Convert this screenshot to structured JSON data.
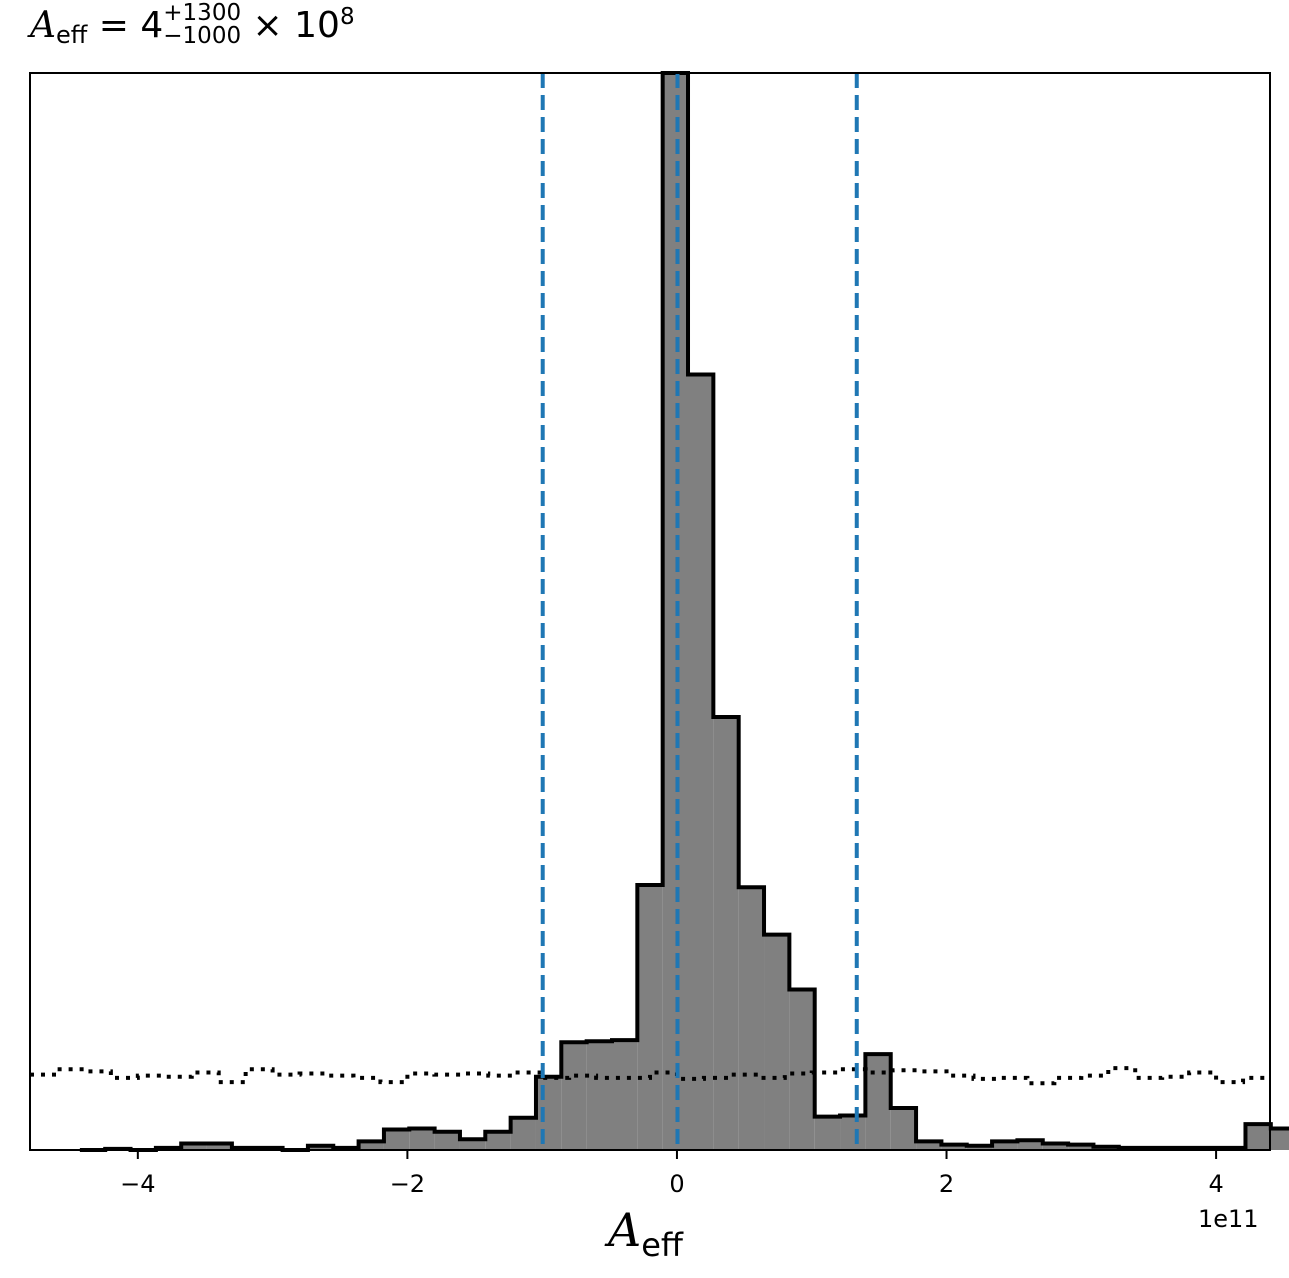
{
  "title": {
    "symbol": "A",
    "symbol_sub": "eff",
    "equals": "= 4",
    "sup": "+1300",
    "sub": "−1000",
    "tail": "× 10",
    "exp": "8"
  },
  "xlabel": {
    "symbol": "A",
    "symbol_sub": "eff"
  },
  "x_offset_label": "1e11",
  "chart_data": {
    "type": "histogram",
    "x_unit_scale": "1e11",
    "xlim": [
      -4.8,
      4.4
    ],
    "ylim": [
      0,
      1.0
    ],
    "xticks": [
      {
        "value": -4,
        "label": "−4"
      },
      {
        "value": -2,
        "label": "−2"
      },
      {
        "value": 0,
        "label": "0"
      },
      {
        "value": 2,
        "label": "2"
      },
      {
        "value": 4,
        "label": "4"
      }
    ],
    "bin_width": 0.188,
    "bin_start": -4.43,
    "counts": [
      0.0,
      0.001,
      0.0,
      0.002,
      0.006,
      0.006,
      0.002,
      0.002,
      0.0,
      0.004,
      0.002,
      0.008,
      0.019,
      0.02,
      0.017,
      0.01,
      0.017,
      0.03,
      0.068,
      0.1,
      0.101,
      0.102,
      0.246,
      1.0,
      0.72,
      0.402,
      0.244,
      0.2,
      0.149,
      0.031,
      0.032,
      0.089,
      0.039,
      0.008,
      0.005,
      0.004,
      0.008,
      0.009,
      0.006,
      0.005,
      0.003,
      0.002,
      0.002,
      0.002,
      0.002,
      0.002,
      0.024,
      0.02,
      0.004,
      0.002
    ],
    "prior_level": 0.068,
    "prior_jitter": [
      0.07,
      0.075,
      0.073,
      0.067,
      0.069,
      0.068,
      0.072,
      0.063,
      0.075,
      0.07,
      0.071,
      0.069,
      0.067,
      0.063,
      0.071,
      0.07,
      0.071,
      0.069,
      0.072,
      0.067,
      0.069,
      0.067,
      0.067,
      0.072,
      0.066,
      0.067,
      0.07,
      0.067,
      0.071,
      0.072,
      0.075,
      0.072,
      0.074,
      0.073,
      0.069,
      0.066,
      0.067,
      0.062,
      0.067,
      0.069,
      0.076,
      0.067,
      0.068,
      0.072,
      0.063,
      0.067
    ],
    "median": 0.004,
    "ci_low": -0.996,
    "ci_high": 1.334,
    "colors": {
      "hist_fill": "#808080",
      "hist_edge": "#000000",
      "ci_lines": "#1f77b4",
      "median_line": "#ff0000",
      "prior": "#000000"
    }
  }
}
